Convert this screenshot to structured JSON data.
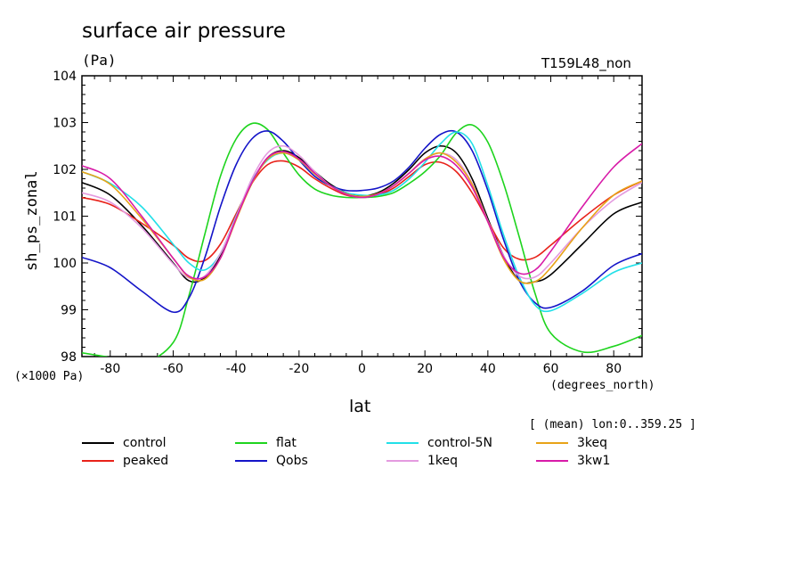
{
  "chart_data": {
    "type": "line",
    "title": "surface air pressure",
    "units": "(Pa)",
    "run_label": "T159L48_non",
    "ylabel": "sh_ps_zonal",
    "xlabel": "lat",
    "x_units": "(degrees_north)",
    "y_scale_note": "(×1000 Pa)",
    "mean_note": "[ (mean) lon:0..359.25 ]",
    "xlim": [
      -89,
      89
    ],
    "ylim": [
      98,
      104
    ],
    "x_ticks": [
      -80,
      -60,
      -40,
      -20,
      0,
      20,
      40,
      60,
      80
    ],
    "y_ticks": [
      98,
      99,
      100,
      101,
      102,
      103,
      104
    ],
    "x": [
      -89,
      -80,
      -70,
      -60,
      -55,
      -50,
      -45,
      -40,
      -35,
      -30,
      -25,
      -20,
      -15,
      -10,
      -5,
      0,
      5,
      10,
      15,
      20,
      25,
      30,
      35,
      40,
      45,
      50,
      55,
      60,
      70,
      80,
      89
    ],
    "series": [
      {
        "name": "control",
        "color": "#000000",
        "values": [
          101.72,
          101.45,
          100.8,
          100.0,
          99.62,
          99.68,
          100.15,
          100.95,
          101.7,
          102.25,
          102.4,
          102.25,
          101.95,
          101.68,
          101.5,
          101.43,
          101.5,
          101.7,
          102.0,
          102.35,
          102.5,
          102.35,
          101.8,
          100.95,
          100.15,
          99.62,
          99.6,
          99.75,
          100.4,
          101.05,
          101.3
        ]
      },
      {
        "name": "peaked",
        "color": "#e8221a",
        "values": [
          101.4,
          101.25,
          100.85,
          100.38,
          100.1,
          100.05,
          100.4,
          101.05,
          101.7,
          102.1,
          102.18,
          102.05,
          101.8,
          101.6,
          101.45,
          101.4,
          101.45,
          101.6,
          101.85,
          102.1,
          102.15,
          101.95,
          101.5,
          100.9,
          100.32,
          100.08,
          100.12,
          100.38,
          100.95,
          101.45,
          101.75
        ]
      },
      {
        "name": "flat",
        "color": "#1ed41e",
        "values": [
          98.08,
          97.98,
          97.85,
          98.3,
          99.3,
          100.6,
          101.85,
          102.65,
          102.98,
          102.85,
          102.35,
          101.88,
          101.58,
          101.45,
          101.4,
          101.4,
          101.42,
          101.5,
          101.7,
          101.95,
          102.3,
          102.78,
          102.95,
          102.58,
          101.7,
          100.55,
          99.35,
          98.5,
          98.1,
          98.22,
          98.45
        ]
      },
      {
        "name": "Qobs",
        "color": "#1414c8",
        "values": [
          100.12,
          99.9,
          99.4,
          98.95,
          99.25,
          100.1,
          101.2,
          102.1,
          102.65,
          102.82,
          102.6,
          102.2,
          101.85,
          101.65,
          101.55,
          101.55,
          101.6,
          101.75,
          102.05,
          102.45,
          102.75,
          102.8,
          102.4,
          101.55,
          100.5,
          99.62,
          99.15,
          99.05,
          99.4,
          99.95,
          100.2
        ]
      },
      {
        "name": "control-5N",
        "color": "#22e0e8",
        "values": [
          101.95,
          101.7,
          101.2,
          100.4,
          100.0,
          99.85,
          100.2,
          101.0,
          101.75,
          102.2,
          102.35,
          102.2,
          101.9,
          101.65,
          101.5,
          101.45,
          101.45,
          101.55,
          101.8,
          102.15,
          102.55,
          102.8,
          102.55,
          101.65,
          100.6,
          99.7,
          99.1,
          98.98,
          99.35,
          99.8,
          100.0
        ]
      },
      {
        "name": "1keq",
        "color": "#e49be0",
        "values": [
          101.5,
          101.3,
          100.75,
          99.98,
          99.68,
          99.72,
          100.2,
          100.98,
          101.8,
          102.35,
          102.5,
          102.3,
          101.95,
          101.65,
          101.47,
          101.4,
          101.47,
          101.65,
          101.92,
          102.22,
          102.35,
          102.2,
          101.7,
          100.9,
          100.15,
          99.72,
          99.7,
          100.0,
          100.75,
          101.35,
          101.72
        ]
      },
      {
        "name": "3keq",
        "color": "#e8a317",
        "values": [
          101.95,
          101.68,
          100.95,
          100.1,
          99.7,
          99.65,
          100.1,
          100.92,
          101.7,
          102.22,
          102.35,
          102.2,
          101.9,
          101.65,
          101.48,
          101.42,
          101.48,
          101.65,
          101.92,
          102.22,
          102.35,
          102.15,
          101.68,
          100.88,
          100.08,
          99.62,
          99.6,
          99.9,
          100.75,
          101.45,
          101.75
        ]
      },
      {
        "name": "3kw1",
        "color": "#d81ba8",
        "values": [
          102.08,
          101.8,
          101.0,
          100.1,
          99.72,
          99.7,
          100.1,
          100.95,
          101.72,
          102.25,
          102.38,
          102.22,
          101.92,
          101.65,
          101.47,
          101.4,
          101.47,
          101.65,
          101.92,
          102.2,
          102.28,
          102.08,
          101.62,
          100.88,
          100.12,
          99.78,
          99.85,
          100.25,
          101.2,
          102.05,
          102.55
        ]
      }
    ]
  },
  "legend": [
    {
      "label": "control",
      "color": "#000000"
    },
    {
      "label": "flat",
      "color": "#1ed41e"
    },
    {
      "label": "control-5N",
      "color": "#22e0e8"
    },
    {
      "label": "3keq",
      "color": "#e8a317"
    },
    {
      "label": "peaked",
      "color": "#e8221a"
    },
    {
      "label": "Qobs",
      "color": "#1414c8"
    },
    {
      "label": "1keq",
      "color": "#e49be0"
    },
    {
      "label": "3kw1",
      "color": "#d81ba8"
    }
  ]
}
